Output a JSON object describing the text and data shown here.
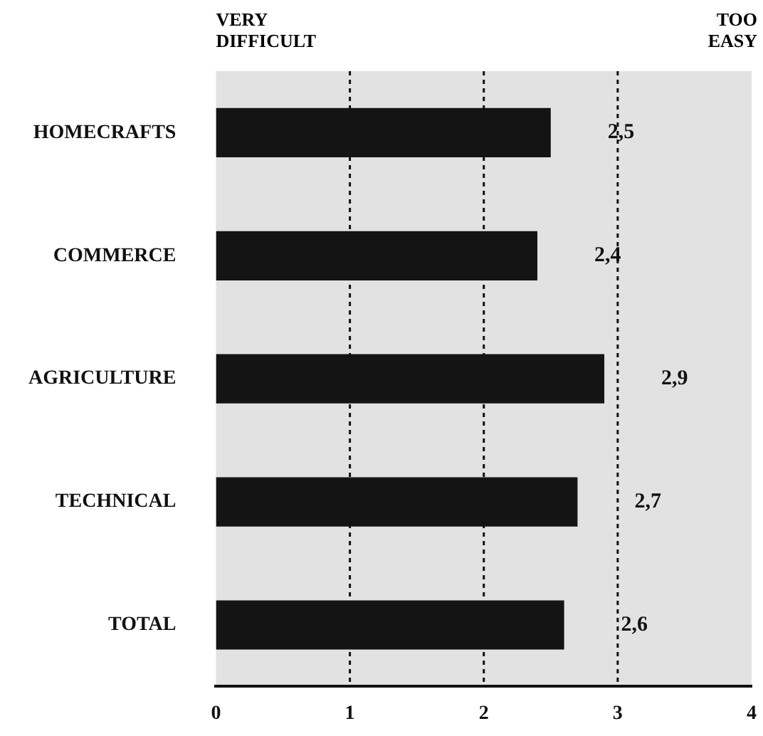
{
  "chart_data": {
    "type": "bar",
    "orientation": "horizontal",
    "categories": [
      "HOMECRAFTS",
      "COMMERCE",
      "AGRICULTURE",
      "TECHNICAL",
      "TOTAL"
    ],
    "values": [
      2.5,
      2.4,
      2.9,
      2.7,
      2.6
    ],
    "value_labels": [
      "2,5",
      "2,4",
      "2,9",
      "2,7",
      "2,6"
    ],
    "color": "#141414",
    "xlim": [
      0,
      4
    ],
    "xticks": [
      0,
      1,
      2,
      3,
      4
    ],
    "grid": "x",
    "annotations": [
      "VERY DIFFICULT",
      "TOO EASY"
    ]
  }
}
